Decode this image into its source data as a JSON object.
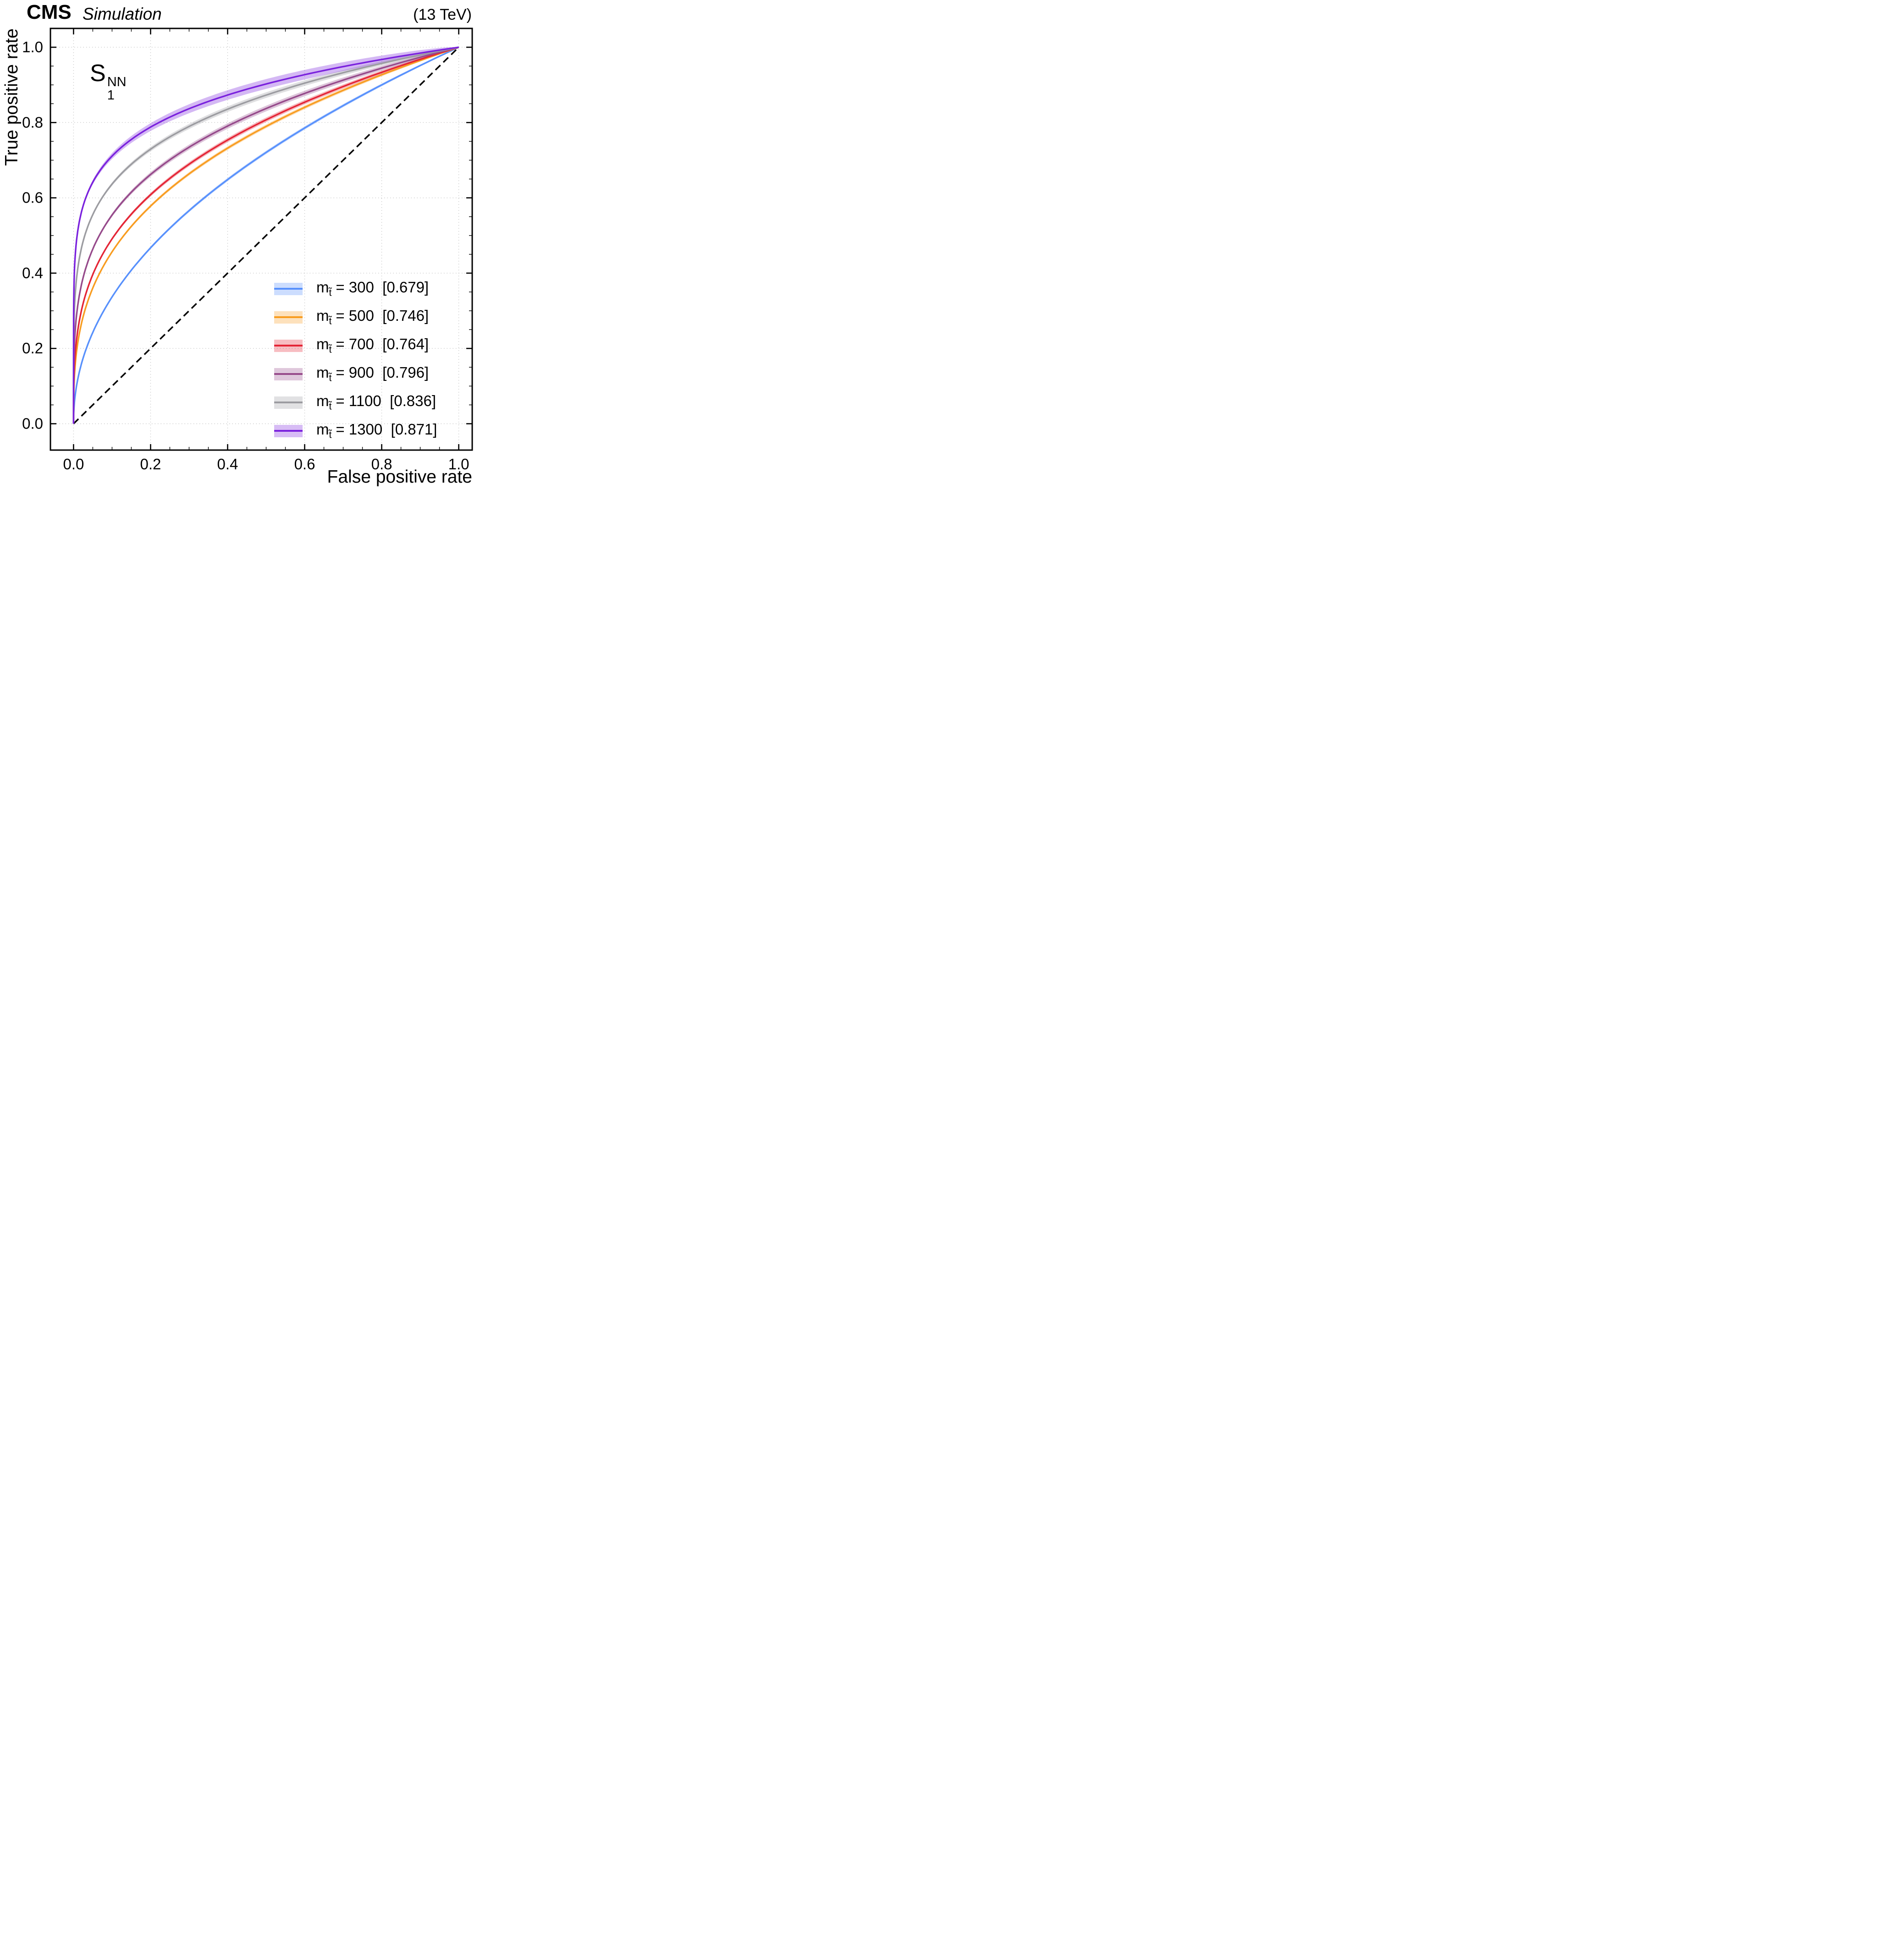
{
  "header": {
    "experiment": "CMS",
    "label": "Simulation",
    "energy": "(13 TeV)"
  },
  "annotation": {
    "base": "S",
    "sub": "1",
    "sup": "NN"
  },
  "chart_data": {
    "type": "line",
    "subtype": "roc-curves-with-uncertainty-bands",
    "title": "",
    "xlabel": "False positive rate",
    "ylabel": "True positive rate",
    "xlim": [
      0,
      1
    ],
    "ylim": [
      0,
      1
    ],
    "grid": true,
    "grid_style": "dotted",
    "legend_position": "lower right",
    "reference_line": {
      "from": [
        0,
        0
      ],
      "to": [
        1,
        1
      ],
      "style": "dashed",
      "color": "#000000"
    },
    "xticks": [
      {
        "v": 0.0,
        "label": "0.0"
      },
      {
        "v": 0.2,
        "label": "0.2"
      },
      {
        "v": 0.4,
        "label": "0.4"
      },
      {
        "v": 0.6,
        "label": "0.6"
      },
      {
        "v": 0.8,
        "label": "0.8"
      },
      {
        "v": 1.0,
        "label": "1.0"
      }
    ],
    "yticks": [
      {
        "v": 0.0,
        "label": "0.0"
      },
      {
        "v": 0.2,
        "label": "0.2"
      },
      {
        "v": 0.4,
        "label": "0.4"
      },
      {
        "v": 0.6,
        "label": "0.6"
      },
      {
        "v": 0.8,
        "label": "0.8"
      },
      {
        "v": 1.0,
        "label": "1.0"
      }
    ],
    "series": [
      {
        "mass": 300,
        "auc": 0.679,
        "color": "#5790fc",
        "band_halfwidth": 0.0045,
        "prefix": "m",
        "subscript": "t̃",
        "text": "= 300  [0.679]"
      },
      {
        "mass": 500,
        "auc": 0.746,
        "color": "#f89c20",
        "band_halfwidth": 0.005,
        "prefix": "m",
        "subscript": "t̃",
        "text": "= 500  [0.746]"
      },
      {
        "mass": 700,
        "auc": 0.764,
        "color": "#e42536",
        "band_halfwidth": 0.006,
        "prefix": "m",
        "subscript": "t̃",
        "text": "= 700  [0.764]"
      },
      {
        "mass": 900,
        "auc": 0.796,
        "color": "#964a8b",
        "band_halfwidth": 0.0075,
        "prefix": "m",
        "subscript": "t̃",
        "text": "= 900  [0.796]"
      },
      {
        "mass": 1100,
        "auc": 0.836,
        "color": "#9c9ca1",
        "band_halfwidth": 0.0075,
        "prefix": "m",
        "subscript": "t̃",
        "text": "= 1100  [0.836]"
      },
      {
        "mass": 1300,
        "auc": 0.871,
        "color": "#7a21dd",
        "band_halfwidth": 0.013,
        "prefix": "m",
        "subscript": "t̃",
        "text": "= 1300  [0.871]"
      }
    ]
  }
}
